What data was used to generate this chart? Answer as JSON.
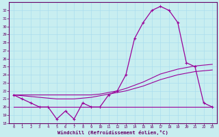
{
  "xlabel": "Windchill (Refroidissement éolien,°C)",
  "background_color": "#c8eef0",
  "line_color": "#990099",
  "hours": [
    0,
    1,
    2,
    3,
    4,
    5,
    6,
    7,
    8,
    9,
    10,
    11,
    12,
    13,
    14,
    15,
    16,
    17,
    18,
    19,
    20,
    21,
    22,
    23
  ],
  "windchill": [
    21.5,
    21.0,
    20.5,
    20.0,
    20.0,
    18.5,
    19.5,
    18.5,
    20.5,
    20.0,
    20.0,
    21.5,
    22.0,
    24.0,
    28.5,
    30.5,
    32.0,
    32.5,
    32.0,
    30.5,
    25.5,
    25.0,
    20.5,
    20.0
  ],
  "flat_line": [
    20.0,
    20.0,
    20.0,
    20.0,
    20.0,
    20.0,
    20.0,
    20.0,
    20.0,
    20.0,
    20.0,
    20.0,
    20.0,
    20.0,
    20.0,
    20.0,
    20.0,
    20.0,
    20.0,
    20.0,
    20.0,
    20.0,
    20.0,
    20.0
  ],
  "trend1": [
    21.5,
    21.4,
    21.3,
    21.2,
    21.1,
    21.0,
    21.0,
    21.0,
    21.1,
    21.2,
    21.4,
    21.6,
    21.8,
    22.0,
    22.3,
    22.6,
    23.0,
    23.4,
    23.7,
    24.0,
    24.2,
    24.4,
    24.5,
    24.6
  ],
  "trend2": [
    21.5,
    21.5,
    21.5,
    21.5,
    21.5,
    21.5,
    21.5,
    21.5,
    21.5,
    21.5,
    21.6,
    21.8,
    22.0,
    22.3,
    22.7,
    23.1,
    23.6,
    24.1,
    24.4,
    24.7,
    24.9,
    25.1,
    25.2,
    25.3
  ],
  "ylim": [
    18,
    33
  ],
  "yticks": [
    18,
    19,
    20,
    21,
    22,
    23,
    24,
    25,
    26,
    27,
    28,
    29,
    30,
    31,
    32
  ],
  "grid_color": "#aaddee",
  "spine_color": "#660066",
  "tick_color": "#660066",
  "label_color": "#660066"
}
